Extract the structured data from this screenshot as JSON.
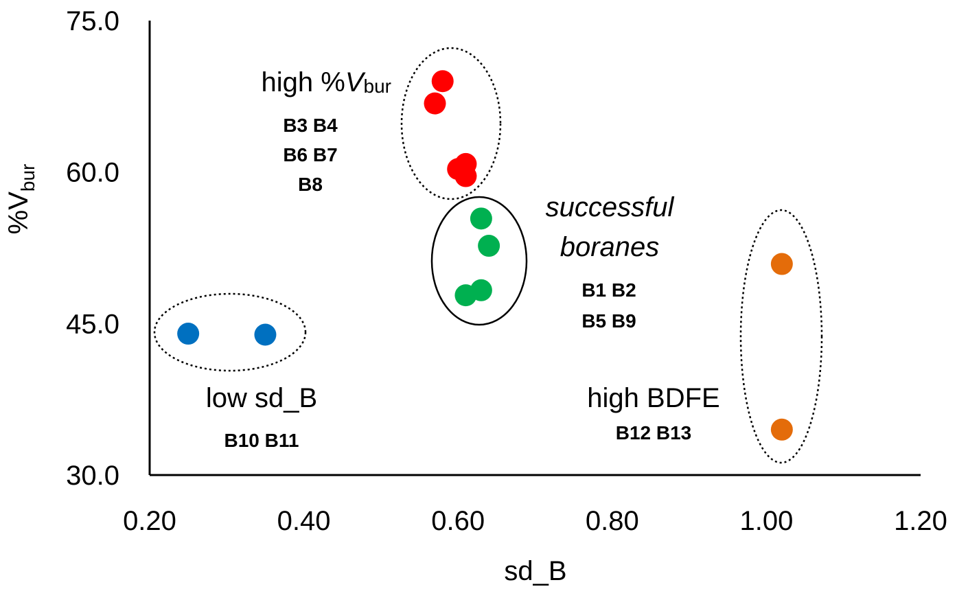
{
  "chart_data": {
    "type": "scatter",
    "xlabel": "sd_B",
    "ylabel": {
      "prefix": "%V",
      "sub": "bur"
    },
    "xlim": [
      0.2,
      1.2
    ],
    "ylim": [
      30.0,
      75.0
    ],
    "xticks": [
      "0.20",
      "0.40",
      "0.60",
      "0.80",
      "1.00",
      "1.20"
    ],
    "yticks": [
      "30.0",
      "45.0",
      "60.0",
      "75.0"
    ],
    "grid": false,
    "series": [
      {
        "color": "#ff0000",
        "points": [
          {
            "x": 0.58,
            "y": 69.0
          },
          {
            "x": 0.57,
            "y": 66.8
          },
          {
            "x": 0.61,
            "y": 60.8
          },
          {
            "x": 0.6,
            "y": 60.3
          },
          {
            "x": 0.61,
            "y": 59.6
          }
        ]
      },
      {
        "color": "#00b050",
        "points": [
          {
            "x": 0.63,
            "y": 55.4
          },
          {
            "x": 0.64,
            "y": 52.7
          },
          {
            "x": 0.63,
            "y": 48.3
          },
          {
            "x": 0.61,
            "y": 47.8
          }
        ]
      },
      {
        "color": "#0070c0",
        "points": [
          {
            "x": 0.25,
            "y": 44.0
          },
          {
            "x": 0.35,
            "y": 43.9
          }
        ]
      },
      {
        "color": "#e46c0a",
        "points": [
          {
            "x": 1.02,
            "y": 50.9
          },
          {
            "x": 1.02,
            "y": 34.5
          }
        ]
      }
    ],
    "annotations": {
      "high_vbur": {
        "text_prefix": "high %",
        "text_italic": "V",
        "text_sub": "bur",
        "members": [
          "B3 B4",
          "B6 B7",
          "B8"
        ]
      },
      "successful": {
        "lines": [
          "successful",
          "boranes"
        ],
        "members": [
          "B1 B2",
          "B5 B9"
        ]
      },
      "low_sdb": {
        "text": "low sd_B",
        "members": [
          "B10 B11"
        ]
      },
      "high_bdfe": {
        "text": "high BDFE",
        "members": [
          "B12 B13"
        ]
      }
    }
  }
}
